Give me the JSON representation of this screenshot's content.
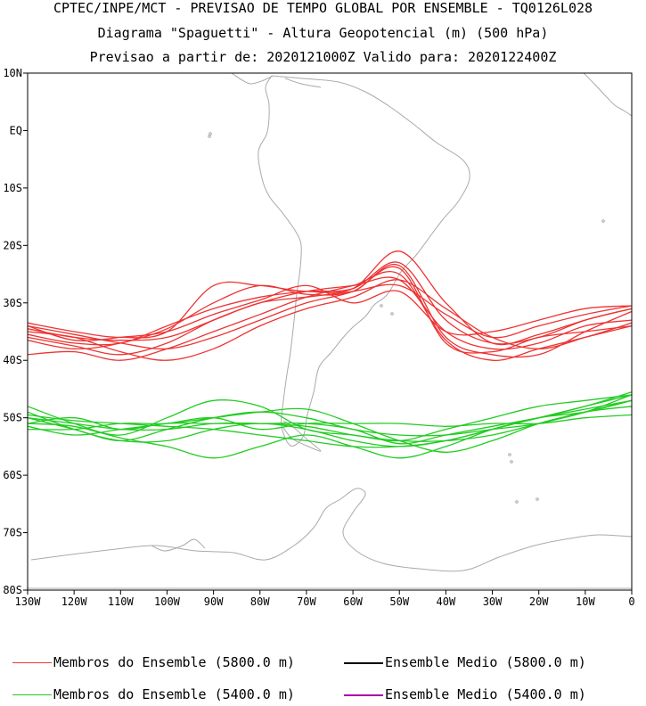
{
  "header": {
    "line1": "CPTEC/INPE/MCT - PREVISAO DE TEMPO GLOBAL POR ENSEMBLE - TQ0126L028",
    "line2": "Diagrama \"Spaguetti\" - Altura Geopotencial (m) (500 hPa)",
    "line3": "Previsao a partir de: 2020121000Z  Valido para: 2020122400Z"
  },
  "axes": {
    "lat_labels": [
      "10N",
      "EQ",
      "10S",
      "20S",
      "30S",
      "40S",
      "50S",
      "60S",
      "70S",
      "80S"
    ],
    "lon_labels": [
      "130W",
      "120W",
      "110W",
      "100W",
      "90W",
      "80W",
      "70W",
      "60W",
      "50W",
      "40W",
      "30W",
      "20W",
      "10W",
      "0"
    ]
  },
  "colors": {
    "red_members": "#ee3333",
    "green_members": "#22cc22",
    "mean_5800": "#000000",
    "mean_5400": "#aa00aa",
    "coast": "#aaaaaa"
  },
  "legend": {
    "red_members": "Membros do Ensemble (5800.0 m)",
    "black_mean": "Ensemble Medio (5800.0 m)",
    "green_members": "Membros do Ensemble (5400.0 m)",
    "purple_mean": "Ensemble Medio (5400.0 m)"
  },
  "chart_data": {
    "type": "line",
    "xlim": [
      -130,
      0
    ],
    "ylim": [
      -80,
      10
    ],
    "x": [
      -130,
      -120,
      -110,
      -100,
      -90,
      -80,
      -70,
      -60,
      -50,
      -40,
      -30,
      -20,
      -10,
      0
    ],
    "series": [
      {
        "group": "5800",
        "values": [
          -34.5,
          -36,
          -36.5,
          -36,
          -33,
          -30,
          -29,
          -28,
          -27,
          -32,
          -36,
          -34,
          -32,
          -30.5
        ]
      },
      {
        "group": "5800",
        "values": [
          -35.5,
          -37,
          -37,
          -34,
          -31,
          -29,
          -28,
          -27.5,
          -23,
          -33,
          -37,
          -36,
          -33,
          -31
        ]
      },
      {
        "group": "5800",
        "values": [
          -36,
          -37.5,
          -39,
          -37,
          -33,
          -30,
          -28,
          -27,
          -26,
          -35,
          -38,
          -37,
          -34,
          -33
        ]
      },
      {
        "group": "5800",
        "values": [
          -34,
          -35.5,
          -37,
          -38,
          -36,
          -33,
          -30,
          -28,
          -24,
          -37,
          -38.5,
          -36,
          -35,
          -34
        ]
      },
      {
        "group": "5800",
        "values": [
          -35,
          -36,
          -38.5,
          -40,
          -38,
          -34,
          -31,
          -29,
          -26,
          -31,
          -36,
          -38,
          -36,
          -33.5
        ]
      },
      {
        "group": "5800",
        "values": [
          -36.5,
          -38,
          -37,
          -34.5,
          -30,
          -27,
          -28.5,
          -28,
          -23.5,
          -36,
          -39,
          -39,
          -35,
          -31.5
        ]
      },
      {
        "group": "5800",
        "values": [
          -34,
          -36.5,
          -36,
          -35,
          -32,
          -29.5,
          -27,
          -30,
          -28,
          -35,
          -35,
          -33,
          -31,
          -30.5
        ]
      },
      {
        "group": "5800",
        "values": [
          -33.5,
          -35,
          -36,
          -35,
          -27,
          -27,
          -28,
          -27.5,
          -21,
          -30,
          -37,
          -35.5,
          -33,
          -31
        ]
      },
      {
        "group": "5800",
        "values": [
          -39,
          -38.5,
          -40,
          -38,
          -35,
          -32,
          -29,
          -27,
          -25,
          -36.5,
          -40,
          -38,
          -36,
          -34
        ]
      },
      {
        "group": "5400",
        "values": [
          -48,
          -51,
          -53,
          -50,
          -47,
          -48,
          -52,
          -53,
          -54,
          -52,
          -50,
          -48,
          -47,
          -46
        ]
      },
      {
        "group": "5400",
        "values": [
          -49,
          -52,
          -54,
          -54,
          -52,
          -51,
          -52,
          -54,
          -55,
          -54,
          -52,
          -50,
          -49,
          -47
        ]
      },
      {
        "group": "5400",
        "values": [
          -51,
          -50,
          -52,
          -51,
          -51,
          -51,
          -51,
          -52,
          -54.5,
          -53,
          -51.5,
          -50,
          -48.5,
          -47
        ]
      },
      {
        "group": "5400",
        "values": [
          -51.5,
          -53,
          -52,
          -51,
          -50,
          -52,
          -51,
          -51,
          -51,
          -51.5,
          -51,
          -51,
          -50,
          -49.5
        ]
      },
      {
        "group": "5400",
        "values": [
          -50,
          -51,
          -52,
          -52,
          -51,
          -51,
          -51.5,
          -53,
          -54,
          -54,
          -53,
          -51,
          -49,
          -46
        ]
      },
      {
        "group": "5400",
        "values": [
          -51,
          -51.5,
          -53.5,
          -55,
          -57,
          -55,
          -53,
          -55,
          -57,
          -55,
          -52,
          -50,
          -48,
          -46
        ]
      },
      {
        "group": "5400",
        "values": [
          -50,
          -52,
          -54,
          -52,
          -50,
          -49,
          -50,
          -52,
          -53,
          -53,
          -52,
          -51,
          -49,
          -48
        ]
      },
      {
        "group": "5400",
        "values": [
          -52,
          -52,
          -51,
          -51,
          -50,
          -49,
          -48.5,
          -51,
          -54,
          -56,
          -54,
          -51,
          -49,
          -47
        ]
      },
      {
        "group": "5400",
        "values": [
          -49.5,
          -50.5,
          -51,
          -51.5,
          -52,
          -53,
          -54,
          -55,
          -55,
          -54,
          -52,
          -50,
          -48,
          -45.5
        ]
      }
    ]
  }
}
